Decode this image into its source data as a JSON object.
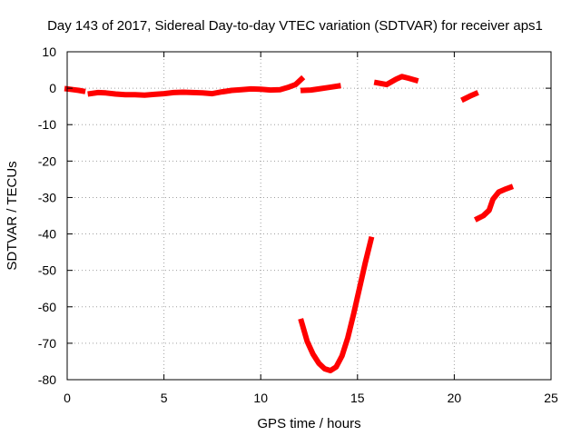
{
  "chart_data": {
    "type": "scatter",
    "title": "Day 143 of 2017, Sidereal Day-to-day VTEC variation (SDTVAR) for receiver aps1",
    "xlabel": "GPS time / hours",
    "ylabel": "SDTVAR / TECUs",
    "xlim": [
      0,
      25
    ],
    "ylim": [
      -80,
      10
    ],
    "xticks": [
      0,
      5,
      10,
      15,
      20,
      25
    ],
    "yticks": [
      10,
      0,
      -10,
      -20,
      -30,
      -40,
      -50,
      -60,
      -70,
      -80
    ],
    "grid": true,
    "legend": "none",
    "color": "#ff0000",
    "series": [
      {
        "x": [
          0.0,
          0.3,
          0.6,
          0.8
        ],
        "y": [
          -0.2,
          -0.4,
          -0.6,
          -0.8
        ]
      },
      {
        "x": [
          1.2,
          1.6,
          2.0,
          2.5,
          3.0,
          3.5,
          4.0,
          4.5,
          5.0,
          5.5,
          6.0,
          6.5,
          7.0,
          7.5,
          8.0,
          8.5,
          9.0,
          9.5,
          10.0,
          10.5,
          11.0,
          11.4,
          11.8,
          12.1
        ],
        "y": [
          -1.5,
          -1.2,
          -1.3,
          -1.6,
          -1.8,
          -1.8,
          -1.9,
          -1.7,
          -1.5,
          -1.2,
          -1.1,
          -1.2,
          -1.3,
          -1.5,
          -1.0,
          -0.6,
          -0.4,
          -0.2,
          -0.3,
          -0.5,
          -0.4,
          0.2,
          1.0,
          2.5
        ]
      },
      {
        "x": [
          12.2,
          12.6,
          13.0,
          13.5,
          14.0
        ],
        "y": [
          -0.6,
          -0.5,
          -0.2,
          0.2,
          0.6
        ]
      },
      {
        "x": [
          16.0,
          16.5,
          17.0,
          17.3,
          17.6,
          18.0
        ],
        "y": [
          1.5,
          1.0,
          2.5,
          3.2,
          2.8,
          2.2
        ]
      },
      {
        "x": [
          20.5,
          20.8,
          21.1
        ],
        "y": [
          -3.0,
          -2.2,
          -1.5
        ]
      },
      {
        "x": [
          12.1,
          12.4,
          12.7,
          13.0,
          13.3,
          13.6,
          13.9,
          14.2,
          14.5,
          14.8,
          15.1,
          15.4,
          15.7
        ],
        "y": [
          -64,
          -69.5,
          -73,
          -75.5,
          -77,
          -77.5,
          -76.5,
          -73.5,
          -68.5,
          -62,
          -55,
          -48,
          -41.5
        ]
      },
      {
        "x": [
          21.2,
          21.5,
          21.8,
          22.0,
          22.3,
          22.6,
          22.9
        ],
        "y": [
          -35.8,
          -35,
          -33.5,
          -30.5,
          -28.5,
          -27.8,
          -27.2
        ]
      }
    ]
  }
}
